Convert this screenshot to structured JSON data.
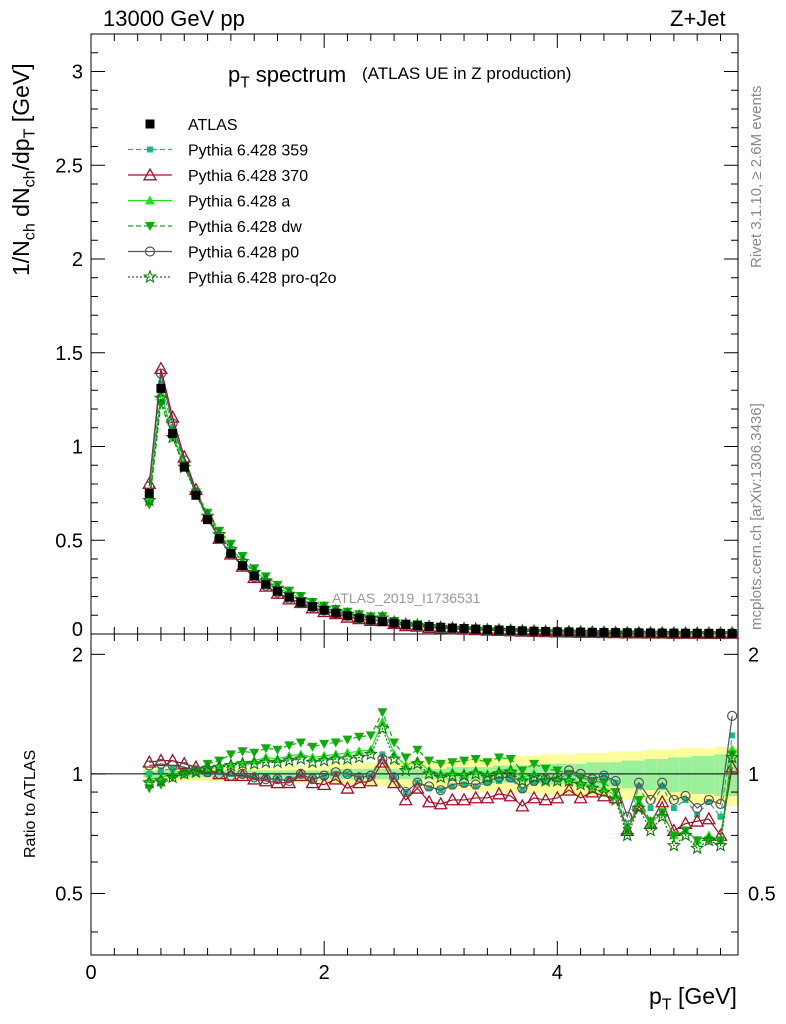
{
  "header": {
    "left": "13000 GeV pp",
    "right": "Z+Jet",
    "plot_title": "p",
    "plot_title_sub": "T",
    "plot_title_rest": " spectrum",
    "plot_subtitle": "(ATLAS UE in Z production)",
    "watermark": "ATLAS_2019_I1736531",
    "side_top": "Rivet 3.1.10, ≥ 2.6M events",
    "side_bottom": "mcplots.cern.ch [arXiv:1306.3436]"
  },
  "axes": {
    "ylabel_main": "1/N_ch dN_ch/dp_T [GeV]",
    "ylabel_ratio": "Ratio to ATLAS",
    "xlabel": "p_T [GeV]"
  },
  "legend": [
    {
      "label": "ATLAS",
      "color": "#000000",
      "marker": "square",
      "line": "none"
    },
    {
      "label": "Pythia 6.428 359",
      "color": "#1ab88a",
      "marker": "small-square",
      "line": "dashed"
    },
    {
      "label": "Pythia 6.428 370",
      "color": "#a0102a",
      "marker": "open-triangle",
      "line": "solid"
    },
    {
      "label": "Pythia 6.428 a",
      "color": "#22dd22",
      "marker": "triangle",
      "line": "solid"
    },
    {
      "label": "Pythia 6.428 dw",
      "color": "#11aa11",
      "marker": "down-triangle",
      "line": "dashed"
    },
    {
      "label": "Pythia 6.428 p0",
      "color": "#555555",
      "marker": "open-circle",
      "line": "solid"
    },
    {
      "label": "Pythia 6.428 pro-q2o",
      "color": "#117711",
      "marker": "star",
      "line": "dotted"
    }
  ],
  "chart_data": {
    "type": "line",
    "title": "pT spectrum (ATLAS UE in Z production)",
    "xlabel": "pT [GeV]",
    "ylabel": "1/Nch dNch/dpT [GeV]",
    "xlim": [
      0,
      5.55
    ],
    "ylim_main": [
      0,
      3.2
    ],
    "ylim_ratio": [
      0.35,
      2.25
    ],
    "x_ticks": [
      "0",
      "2",
      "4"
    ],
    "y_ticks_main": [
      "0",
      "0.5",
      "1",
      "1.5",
      "2",
      "2.5",
      "3"
    ],
    "y_ticks_ratio": [
      "0.5",
      "1",
      "2"
    ],
    "x": [
      0.5,
      0.6,
      0.7,
      0.8,
      0.9,
      1.0,
      1.1,
      1.2,
      1.3,
      1.4,
      1.5,
      1.6,
      1.7,
      1.8,
      1.9,
      2.0,
      2.1,
      2.2,
      2.3,
      2.4,
      2.5,
      2.6,
      2.7,
      2.8,
      2.9,
      3.0,
      3.1,
      3.2,
      3.3,
      3.4,
      3.5,
      3.6,
      3.7,
      3.8,
      3.9,
      4.0,
      4.1,
      4.2,
      4.3,
      4.4,
      4.5,
      4.6,
      4.7,
      4.8,
      4.9,
      5.0,
      5.1,
      5.2,
      5.3,
      5.4,
      5.5
    ],
    "atlas": [
      0.75,
      1.31,
      1.07,
      0.89,
      0.74,
      0.61,
      0.51,
      0.43,
      0.365,
      0.31,
      0.265,
      0.228,
      0.196,
      0.169,
      0.146,
      0.127,
      0.111,
      0.097,
      0.085,
      0.075,
      0.066,
      0.058,
      0.051,
      0.045,
      0.04,
      0.036,
      0.032,
      0.029,
      0.026,
      0.023,
      0.021,
      0.019,
      0.017,
      0.015,
      0.0135,
      0.012,
      0.011,
      0.01,
      0.009,
      0.0082,
      0.0074,
      0.0067,
      0.0061,
      0.0055,
      0.005,
      0.0045,
      0.0041,
      0.0037,
      0.0034,
      0.0031,
      0.0028
    ],
    "band_inner": [
      0.02,
      0.02,
      0.02,
      0.02,
      0.02,
      0.02,
      0.02,
      0.02,
      0.02,
      0.02,
      0.02,
      0.02,
      0.02,
      0.02,
      0.02,
      0.02,
      0.03,
      0.03,
      0.03,
      0.03,
      0.03,
      0.03,
      0.03,
      0.03,
      0.03,
      0.03,
      0.04,
      0.04,
      0.04,
      0.04,
      0.05,
      0.05,
      0.05,
      0.05,
      0.06,
      0.06,
      0.06,
      0.06,
      0.07,
      0.07,
      0.07,
      0.08,
      0.08,
      0.09,
      0.09,
      0.1,
      0.1,
      0.11,
      0.11,
      0.12,
      0.12
    ],
    "band_outer": [
      0.04,
      0.04,
      0.04,
      0.04,
      0.04,
      0.04,
      0.04,
      0.04,
      0.04,
      0.04,
      0.04,
      0.04,
      0.05,
      0.05,
      0.05,
      0.05,
      0.06,
      0.06,
      0.06,
      0.07,
      0.07,
      0.07,
      0.08,
      0.08,
      0.08,
      0.09,
      0.09,
      0.09,
      0.1,
      0.1,
      0.1,
      0.11,
      0.11,
      0.11,
      0.12,
      0.12,
      0.12,
      0.13,
      0.13,
      0.13,
      0.14,
      0.14,
      0.14,
      0.15,
      0.15,
      0.15,
      0.16,
      0.16,
      0.16,
      0.17,
      0.17
    ],
    "series": [
      {
        "name": "Pythia 6.428 359",
        "ratio": [
          1.0,
          1.02,
          1.03,
          1.02,
          1.01,
          1.0,
          1.01,
          1.0,
          0.99,
          0.98,
          0.98,
          0.97,
          0.97,
          0.99,
          0.97,
          0.98,
          1.0,
          1.0,
          0.98,
          0.99,
          1.12,
          0.98,
          0.9,
          0.95,
          0.92,
          0.91,
          0.93,
          0.94,
          0.93,
          0.95,
          0.96,
          0.97,
          0.91,
          0.95,
          0.96,
          0.97,
          1.0,
          0.99,
          0.95,
          0.98,
          0.95,
          0.74,
          0.93,
          0.82,
          0.93,
          0.82,
          0.86,
          0.79,
          0.85,
          0.78,
          1.25
        ]
      },
      {
        "name": "Pythia 6.428 370",
        "ratio": [
          1.07,
          1.08,
          1.08,
          1.06,
          1.04,
          1.03,
          1.0,
          0.99,
          0.99,
          0.97,
          0.96,
          0.95,
          0.95,
          0.99,
          0.95,
          0.94,
          0.97,
          0.92,
          0.95,
          0.96,
          1.07,
          0.95,
          0.86,
          0.92,
          0.85,
          0.84,
          0.86,
          0.86,
          0.87,
          0.87,
          0.89,
          0.88,
          0.83,
          0.87,
          0.86,
          0.87,
          0.91,
          0.87,
          0.9,
          0.88,
          0.87,
          0.72,
          0.83,
          0.75,
          0.85,
          0.72,
          0.75,
          0.76,
          0.77,
          0.7,
          1.04
        ]
      },
      {
        "name": "Pythia 6.428 a",
        "ratio": [
          0.97,
          0.98,
          1.0,
          1.01,
          1.02,
          1.04,
          1.05,
          1.06,
          1.07,
          1.08,
          1.1,
          1.09,
          1.11,
          1.12,
          1.1,
          1.11,
          1.12,
          1.13,
          1.14,
          1.15,
          1.35,
          1.12,
          1.05,
          1.08,
          1.02,
          1.0,
          1.01,
          1.0,
          1.02,
          1.0,
          1.02,
          1.03,
          0.98,
          1.0,
          0.98,
          0.98,
          0.97,
          0.95,
          0.93,
          0.92,
          0.88,
          0.72,
          0.85,
          0.75,
          0.8,
          0.7,
          0.72,
          0.68,
          0.7,
          0.68,
          1.15
        ]
      },
      {
        "name": "Pythia 6.428 dw",
        "ratio": [
          0.92,
          0.94,
          0.98,
          1.0,
          1.02,
          1.06,
          1.08,
          1.12,
          1.14,
          1.13,
          1.16,
          1.15,
          1.18,
          1.2,
          1.17,
          1.19,
          1.2,
          1.22,
          1.24,
          1.25,
          1.43,
          1.2,
          1.1,
          1.15,
          1.08,
          1.06,
          1.07,
          1.08,
          1.09,
          1.07,
          1.1,
          1.09,
          1.02,
          1.06,
          1.03,
          1.02,
          1.0,
          0.98,
          0.96,
          0.95,
          0.9,
          0.72,
          0.86,
          0.76,
          0.8,
          0.7,
          0.72,
          0.68,
          0.68,
          0.68,
          1.12
        ]
      },
      {
        "name": "Pythia 6.428 p0",
        "ratio": [
          1.05,
          1.06,
          1.05,
          1.04,
          1.02,
          1.01,
          1.0,
          0.99,
          1.0,
          0.98,
          0.97,
          0.97,
          0.96,
          1.0,
          0.97,
          0.99,
          1.01,
          1.0,
          0.98,
          0.99,
          1.09,
          0.98,
          0.9,
          0.95,
          0.93,
          0.91,
          0.94,
          0.95,
          0.94,
          0.96,
          0.98,
          0.98,
          0.92,
          0.96,
          0.97,
          0.98,
          1.02,
          1.0,
          0.97,
          0.99,
          0.96,
          0.78,
          0.95,
          0.86,
          0.95,
          0.86,
          0.88,
          0.82,
          0.86,
          0.84,
          1.4
        ]
      },
      {
        "name": "Pythia 6.428 pro-q2o",
        "ratio": [
          0.95,
          0.96,
          0.98,
          1.0,
          1.01,
          1.03,
          1.04,
          1.05,
          1.06,
          1.06,
          1.07,
          1.07,
          1.08,
          1.09,
          1.07,
          1.08,
          1.09,
          1.09,
          1.1,
          1.12,
          1.3,
          1.09,
          1.02,
          1.06,
          1.0,
          0.98,
          0.99,
          0.99,
          1.0,
          0.98,
          1.0,
          1.01,
          0.96,
          0.98,
          0.96,
          0.96,
          0.96,
          0.94,
          0.92,
          0.9,
          0.86,
          0.7,
          0.82,
          0.72,
          0.78,
          0.66,
          0.7,
          0.65,
          0.68,
          0.66,
          1.1
        ]
      }
    ]
  }
}
